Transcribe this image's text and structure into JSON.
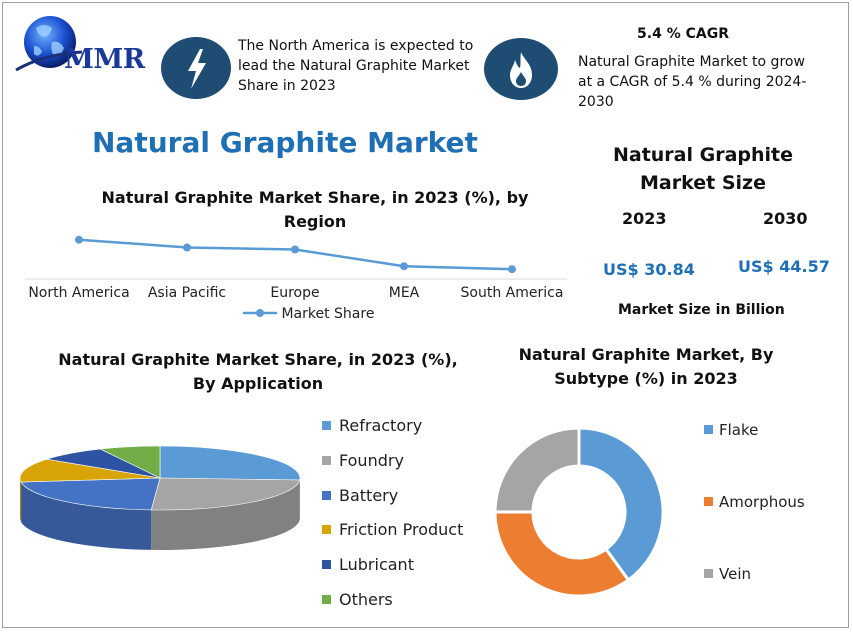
{
  "logo": {
    "text": "MMR"
  },
  "info_left": {
    "icon": "lightning-icon",
    "text": "The North America is expected to lead the Natural Graphite Market Share in 2023"
  },
  "info_right": {
    "icon": "flame-icon",
    "title": "5.4 % CAGR",
    "text": "Natural Graphite Market to grow at a CAGR of 5.4 % during 2024-2030"
  },
  "main_title": "Natural Graphite Market",
  "market_size": {
    "title": "Natural Graphite Market Size",
    "year_a": "2023",
    "year_b": "2030",
    "value_a": "US$ 30.84",
    "value_b": "US$ 44.57",
    "unit": "Market Size in Billion"
  },
  "colors": {
    "accent": "#1f6fb5",
    "icon_bg": "#1f4c73",
    "line": "#5b9bd5"
  },
  "chart_data": [
    {
      "type": "line",
      "title": "Natural Graphite Market Share, in 2023 (%), by Region",
      "categories": [
        "North America",
        "Asia Pacific",
        "Europe",
        "MEA",
        "South America"
      ],
      "series": [
        {
          "name": "Market Share",
          "values": [
            40,
            32,
            30,
            13,
            10
          ]
        }
      ],
      "ylim": [
        0,
        60
      ],
      "legend": "bottom",
      "grid": false
    },
    {
      "type": "pie",
      "title": "Natural Graphite Market Share, in 2023 (%), By Application",
      "labels": [
        "Refractory",
        "Foundry",
        "Battery",
        "Friction Product",
        "Lubricant",
        "Others"
      ],
      "values": [
        26,
        25,
        22,
        12,
        8,
        7
      ],
      "colors": [
        "#5b9bd5",
        "#a5a5a5",
        "#4472c4",
        "#d9a406",
        "#2e53a3",
        "#70ad47"
      ],
      "legend": "right"
    },
    {
      "type": "pie",
      "title": "Natural Graphite Market, By Subtype (%) in 2023",
      "labels": [
        "Flake",
        "Amorphous",
        "Vein"
      ],
      "values": [
        40,
        35,
        25
      ],
      "colors": [
        "#5b9bd5",
        "#ed7d31",
        "#a5a5a5"
      ],
      "legend": "right"
    }
  ]
}
